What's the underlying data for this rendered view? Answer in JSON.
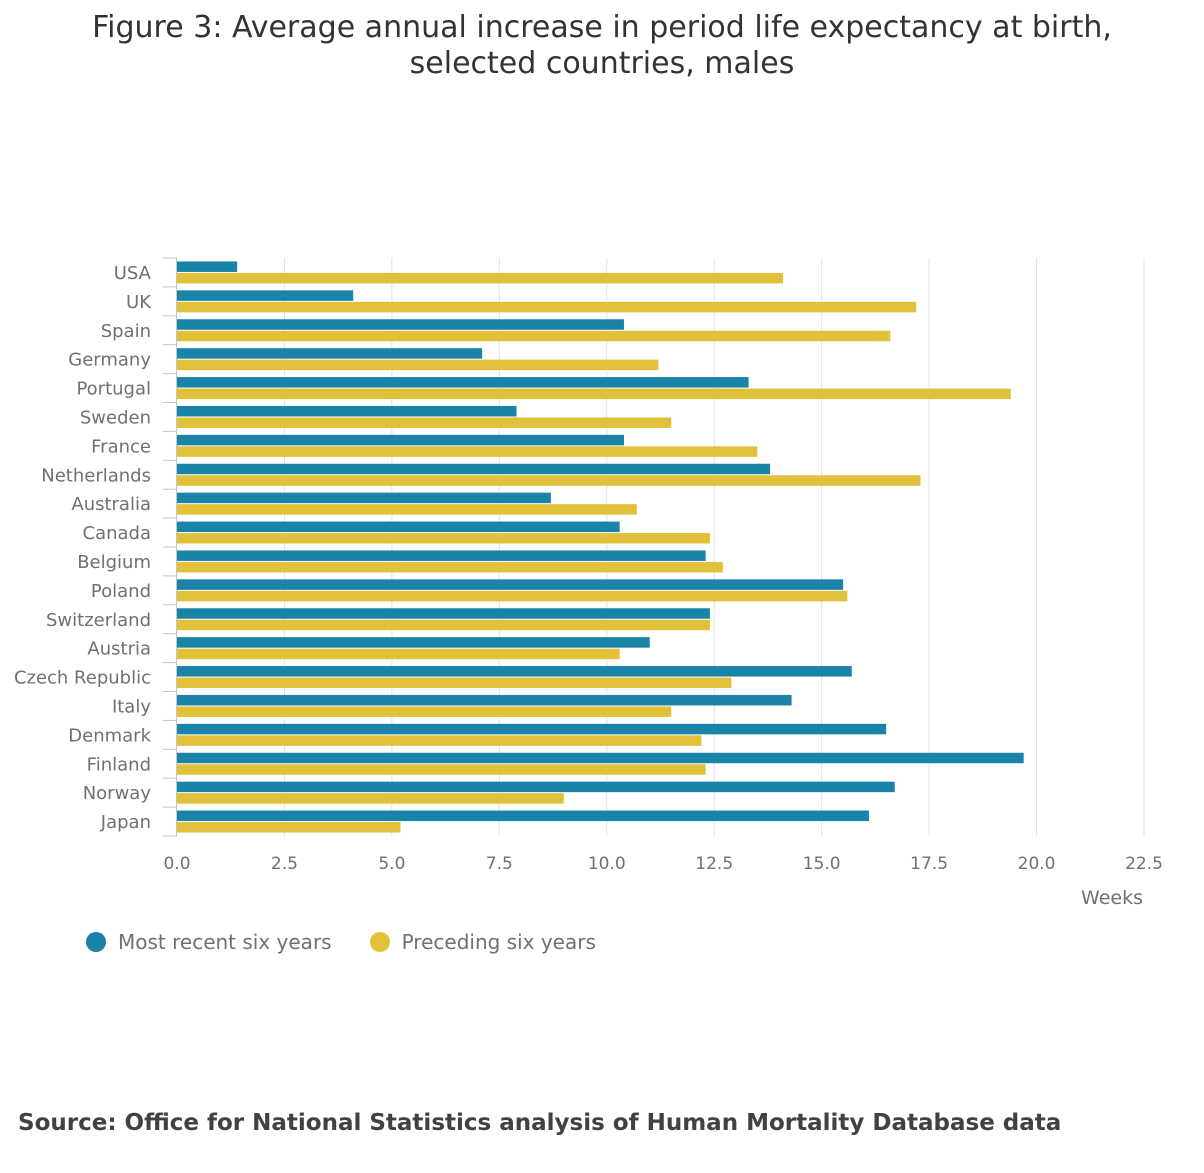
{
  "title_line1": "Figure 3: Average annual increase in period life expectancy at birth,",
  "title_line2": "selected countries, males",
  "source": "Source: Office for National Statistics analysis of Human Mortality Database data",
  "colors": {
    "recent": "#1a83a8",
    "preceding": "#e2c13a",
    "grid": "#e2e2e3",
    "axis": "#c5c5c6"
  },
  "chart_data": {
    "type": "bar",
    "orientation": "horizontal",
    "categories": [
      "USA",
      "UK",
      "Spain",
      "Germany",
      "Portugal",
      "Sweden",
      "France",
      "Netherlands",
      "Australia",
      "Canada",
      "Belgium",
      "Poland",
      "Switzerland",
      "Austria",
      "Czech Republic",
      "Italy",
      "Denmark",
      "Finland",
      "Norway",
      "Japan"
    ],
    "series": [
      {
        "name": "Most recent six years",
        "color": "#1a83a8",
        "values": [
          1.4,
          4.1,
          10.4,
          7.1,
          13.3,
          7.9,
          10.4,
          13.8,
          8.7,
          10.3,
          12.3,
          15.5,
          12.4,
          11.0,
          15.7,
          14.3,
          16.5,
          19.7,
          16.7,
          16.1
        ]
      },
      {
        "name": "Preceding six years",
        "color": "#e2c13a",
        "values": [
          14.1,
          17.2,
          16.6,
          11.2,
          19.4,
          11.5,
          13.5,
          17.3,
          10.7,
          12.4,
          12.7,
          15.6,
          12.4,
          10.3,
          12.9,
          11.5,
          12.2,
          12.3,
          9.0,
          5.2
        ]
      }
    ],
    "xlim": [
      0,
      22.5
    ],
    "xticks": [
      "0.0",
      "2.5",
      "5.0",
      "7.5",
      "10.0",
      "12.5",
      "15.0",
      "17.5",
      "20.0",
      "22.5"
    ],
    "xlabel": "Weeks",
    "ylabel": "",
    "grid": true,
    "legend": "bottom-left"
  }
}
